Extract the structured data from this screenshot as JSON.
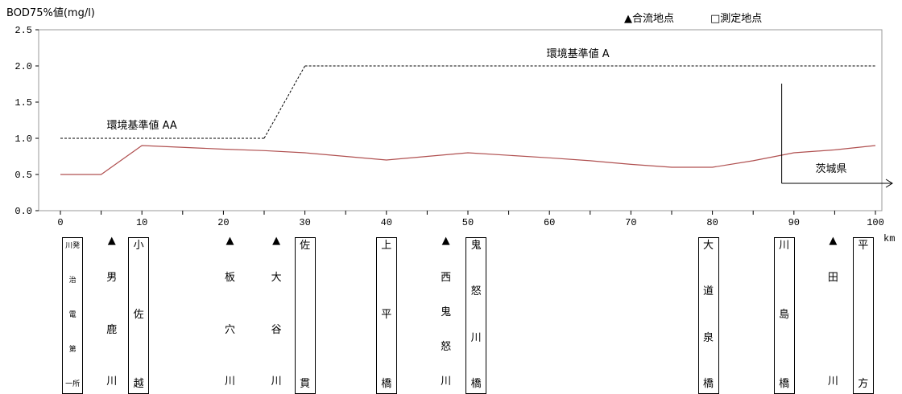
{
  "chart_data": {
    "type": "line",
    "ylabel": "BOD75%値(mg/l)",
    "xunit": "km",
    "xlim": [
      0,
      100
    ],
    "ylim": [
      0,
      2.5
    ],
    "x_ticks": [
      0,
      10,
      20,
      30,
      40,
      50,
      60,
      70,
      80,
      90,
      100
    ],
    "y_ticks": [
      "0.0",
      "0.5",
      "1.0",
      "1.5",
      "2.0",
      "2.5"
    ],
    "series": [
      {
        "color": "#b05050",
        "x": [
          0,
          5,
          10,
          20,
          25,
          30,
          40,
          45,
          50,
          60,
          65,
          70,
          75,
          80,
          85,
          90,
          95,
          100
        ],
        "y": [
          0.5,
          0.5,
          0.9,
          0.85,
          0.83,
          0.8,
          0.7,
          0.75,
          0.8,
          0.73,
          0.69,
          0.64,
          0.6,
          0.6,
          0.69,
          0.8,
          0.84,
          0.9
        ]
      }
    ],
    "standards": [
      {
        "label": "環境基準値 AA",
        "x": [
          0,
          25
        ],
        "y": 1.0
      },
      {
        "label": "環境基準値 A",
        "x": [
          30,
          100
        ],
        "y": 2.0
      }
    ],
    "standard_transition": {
      "x": [
        25,
        30
      ],
      "y": [
        1.0,
        2.0
      ]
    },
    "prefecture_marker": {
      "label": "茨城県",
      "x": 88.5
    }
  },
  "legend": {
    "confluence": "▲合流地点",
    "measurement": "□測定地点"
  },
  "stations": [
    {
      "x": 1.5,
      "boxed": true,
      "triangle": false,
      "chars": [
        "川発",
        "治",
        "電",
        "第",
        "一所"
      ],
      "small": true
    },
    {
      "x": 6.3,
      "boxed": false,
      "triangle": true,
      "chars": [
        "男",
        "鹿",
        "川"
      ]
    },
    {
      "x": 9.6,
      "boxed": true,
      "triangle": false,
      "chars": [
        "小",
        "佐",
        "越"
      ]
    },
    {
      "x": 20.8,
      "boxed": false,
      "triangle": true,
      "chars": [
        "板",
        "穴",
        "川"
      ]
    },
    {
      "x": 26.5,
      "boxed": false,
      "triangle": true,
      "chars": [
        "大",
        "谷",
        "川"
      ]
    },
    {
      "x": 30.0,
      "boxed": true,
      "triangle": false,
      "chars": [
        "佐",
        "貫"
      ]
    },
    {
      "x": 40.0,
      "boxed": true,
      "triangle": false,
      "chars": [
        "上",
        "平",
        "橋"
      ]
    },
    {
      "x": 47.3,
      "boxed": false,
      "triangle": true,
      "chars": [
        "西",
        "鬼",
        "怒",
        "川"
      ]
    },
    {
      "x": 51.0,
      "boxed": true,
      "triangle": false,
      "chars": [
        "鬼",
        "怒",
        "川",
        "橋"
      ]
    },
    {
      "x": 79.5,
      "boxed": true,
      "triangle": false,
      "chars": [
        "大",
        "道",
        "泉",
        "橋"
      ]
    },
    {
      "x": 88.8,
      "boxed": true,
      "triangle": false,
      "chars": [
        "川",
        "島",
        "橋"
      ]
    },
    {
      "x": 94.8,
      "boxed": false,
      "triangle": true,
      "chars": [
        "田",
        "川"
      ]
    },
    {
      "x": 98.5,
      "boxed": true,
      "triangle": false,
      "chars": [
        "平",
        "方"
      ]
    }
  ]
}
